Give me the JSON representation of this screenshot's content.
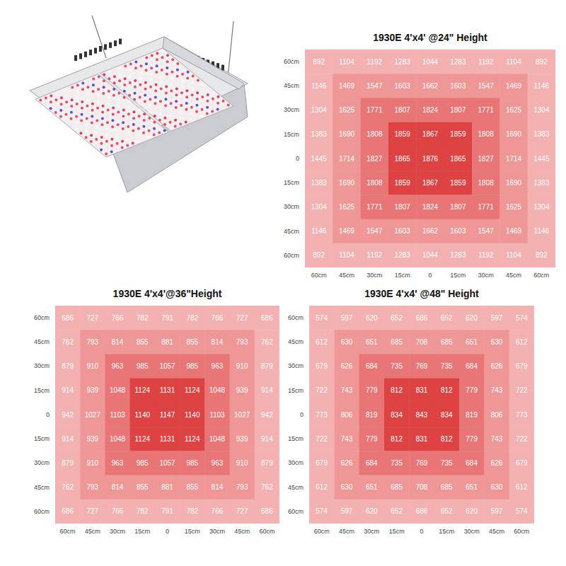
{
  "chart_data": [
    {
      "type": "heatmap",
      "title": "1930E 4'x4' @24\" Height",
      "x": [
        "60cm",
        "45cm",
        "30cm",
        "15cm",
        "0",
        "15cm",
        "30cm",
        "45cm",
        "60cm"
      ],
      "y": [
        "60cm",
        "45cm",
        "30cm",
        "15cm",
        "0",
        "15cm",
        "30cm",
        "45cm",
        "60cm"
      ],
      "cells": [
        [
          892,
          1104,
          1192,
          1283,
          1044,
          1283,
          1192,
          1104,
          892
        ],
        [
          1146,
          1469,
          1547,
          1603,
          1662,
          1603,
          1547,
          1469,
          1146
        ],
        [
          1304,
          1625,
          1771,
          1807,
          1824,
          1807,
          1771,
          1625,
          1304
        ],
        [
          1383,
          1690,
          1808,
          1859,
          1867,
          1859,
          1808,
          1690,
          1383
        ],
        [
          1445,
          1714,
          1827,
          1865,
          1876,
          1865,
          1827,
          1714,
          1445
        ],
        [
          1383,
          1690,
          1808,
          1859,
          1867,
          1859,
          1808,
          1690,
          1383
        ],
        [
          1304,
          1625,
          1771,
          1807,
          1824,
          1807,
          1771,
          1625,
          1304
        ],
        [
          1146,
          1469,
          1547,
          1603,
          1662,
          1603,
          1547,
          1469,
          1146
        ],
        [
          892,
          1104,
          1192,
          1283,
          1044,
          1283,
          1192,
          1104,
          892
        ]
      ],
      "data_labels": true
    },
    {
      "type": "heatmap",
      "title": "1930E 4'x4'@36\"Height",
      "x": [
        "60cm",
        "45cm",
        "30cm",
        "15cm",
        "0",
        "15cm",
        "30cm",
        "45cm",
        "60cm"
      ],
      "y": [
        "60cm",
        "45cm",
        "30cm",
        "15cm",
        "0",
        "15cm",
        "30cm",
        "45cm",
        "60cm"
      ],
      "cells": [
        [
          686,
          727,
          766,
          782,
          791,
          782,
          766,
          727,
          686
        ],
        [
          762,
          793,
          814,
          855,
          881,
          855,
          814,
          793,
          762
        ],
        [
          879,
          910,
          963,
          985,
          1057,
          985,
          963,
          910,
          879
        ],
        [
          914,
          939,
          1048,
          1124,
          1131,
          1124,
          1048,
          939,
          914
        ],
        [
          942,
          1027,
          1103,
          1140,
          1147,
          1140,
          1103,
          1027,
          942
        ],
        [
          914,
          939,
          1048,
          1124,
          1131,
          1124,
          1048,
          939,
          914
        ],
        [
          879,
          910,
          963,
          985,
          1057,
          985,
          963,
          910,
          879
        ],
        [
          762,
          793,
          814,
          855,
          881,
          855,
          814,
          793,
          762
        ],
        [
          686,
          727,
          766,
          782,
          791,
          782,
          766,
          727,
          686
        ]
      ],
      "data_labels": true
    },
    {
      "type": "heatmap",
      "title": "1930E 4'x4' @48\" Height",
      "x": [
        "60cm",
        "45cm",
        "30cm",
        "15cm",
        "0",
        "15cm",
        "30cm",
        "45cm",
        "60cm"
      ],
      "y": [
        "60cm",
        "45cm",
        "30cm",
        "15cm",
        "0",
        "15cm",
        "30cm",
        "45cm",
        "60cm"
      ],
      "cells": [
        [
          574,
          597,
          620,
          652,
          686,
          652,
          620,
          597,
          574
        ],
        [
          612,
          630,
          651,
          685,
          708,
          685,
          651,
          630,
          612
        ],
        [
          679,
          626,
          684,
          735,
          769,
          735,
          684,
          626,
          679
        ],
        [
          722,
          743,
          779,
          812,
          831,
          812,
          779,
          743,
          722
        ],
        [
          773,
          806,
          819,
          834,
          843,
          834,
          819,
          806,
          773
        ],
        [
          722,
          743,
          779,
          812,
          831,
          812,
          779,
          743,
          722
        ],
        [
          679,
          626,
          684,
          735,
          769,
          735,
          684,
          626,
          679
        ],
        [
          612,
          630,
          651,
          685,
          708,
          685,
          651,
          630,
          612
        ],
        [
          574,
          597,
          620,
          652,
          686,
          652,
          620,
          597,
          574
        ]
      ],
      "data_labels": true
    }
  ]
}
